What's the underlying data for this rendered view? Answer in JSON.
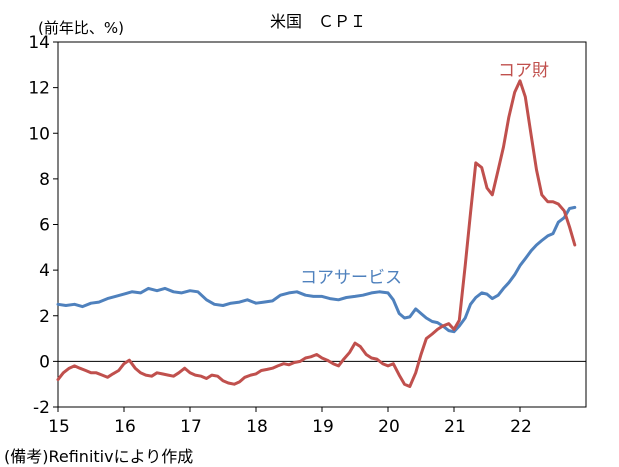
{
  "chart_data": {
    "type": "line",
    "title": "米国　ＣＰＩ",
    "unit_label": "(前年比、%)",
    "source": "(備考)Refinitivにより作成",
    "ylim": [
      -2,
      14
    ],
    "y_ticks": [
      -2,
      0,
      2,
      4,
      6,
      8,
      10,
      12,
      14
    ],
    "x_tick_labels": [
      "15",
      "16",
      "17",
      "18",
      "19",
      "20",
      "21",
      "22"
    ],
    "x_range": [
      2015.0,
      2023.0
    ],
    "grid": false,
    "zero_line": true,
    "series": [
      {
        "name": "コアサービス",
        "color": "#4f81bd",
        "points": [
          [
            2015.0,
            2.5
          ],
          [
            2015.12,
            2.45
          ],
          [
            2015.25,
            2.5
          ],
          [
            2015.37,
            2.4
          ],
          [
            2015.5,
            2.55
          ],
          [
            2015.62,
            2.6
          ],
          [
            2015.75,
            2.75
          ],
          [
            2015.87,
            2.85
          ],
          [
            2016.0,
            2.95
          ],
          [
            2016.12,
            3.05
          ],
          [
            2016.25,
            3.0
          ],
          [
            2016.37,
            3.2
          ],
          [
            2016.5,
            3.1
          ],
          [
            2016.62,
            3.2
          ],
          [
            2016.75,
            3.05
          ],
          [
            2016.87,
            3.0
          ],
          [
            2017.0,
            3.1
          ],
          [
            2017.12,
            3.05
          ],
          [
            2017.25,
            2.7
          ],
          [
            2017.37,
            2.5
          ],
          [
            2017.5,
            2.45
          ],
          [
            2017.62,
            2.55
          ],
          [
            2017.75,
            2.6
          ],
          [
            2017.87,
            2.7
          ],
          [
            2018.0,
            2.55
          ],
          [
            2018.12,
            2.6
          ],
          [
            2018.25,
            2.65
          ],
          [
            2018.37,
            2.9
          ],
          [
            2018.5,
            3.0
          ],
          [
            2018.62,
            3.05
          ],
          [
            2018.75,
            2.9
          ],
          [
            2018.87,
            2.85
          ],
          [
            2019.0,
            2.85
          ],
          [
            2019.12,
            2.75
          ],
          [
            2019.25,
            2.7
          ],
          [
            2019.37,
            2.8
          ],
          [
            2019.5,
            2.85
          ],
          [
            2019.62,
            2.9
          ],
          [
            2019.75,
            3.0
          ],
          [
            2019.87,
            3.05
          ],
          [
            2020.0,
            3.0
          ],
          [
            2020.08,
            2.7
          ],
          [
            2020.17,
            2.1
          ],
          [
            2020.25,
            1.9
          ],
          [
            2020.33,
            1.95
          ],
          [
            2020.42,
            2.3
          ],
          [
            2020.5,
            2.1
          ],
          [
            2020.58,
            1.9
          ],
          [
            2020.67,
            1.75
          ],
          [
            2020.75,
            1.7
          ],
          [
            2020.83,
            1.55
          ],
          [
            2020.92,
            1.35
          ],
          [
            2021.0,
            1.3
          ],
          [
            2021.08,
            1.55
          ],
          [
            2021.17,
            1.9
          ],
          [
            2021.25,
            2.5
          ],
          [
            2021.33,
            2.8
          ],
          [
            2021.42,
            3.0
          ],
          [
            2021.5,
            2.95
          ],
          [
            2021.58,
            2.75
          ],
          [
            2021.67,
            2.9
          ],
          [
            2021.75,
            3.2
          ],
          [
            2021.83,
            3.45
          ],
          [
            2021.92,
            3.8
          ],
          [
            2022.0,
            4.2
          ],
          [
            2022.08,
            4.5
          ],
          [
            2022.17,
            4.85
          ],
          [
            2022.25,
            5.1
          ],
          [
            2022.33,
            5.3
          ],
          [
            2022.42,
            5.5
          ],
          [
            2022.5,
            5.6
          ],
          [
            2022.58,
            6.1
          ],
          [
            2022.67,
            6.3
          ],
          [
            2022.75,
            6.7
          ],
          [
            2022.83,
            6.75
          ]
        ]
      },
      {
        "name": "コア財",
        "color": "#c0504d",
        "points": [
          [
            2015.0,
            -0.8
          ],
          [
            2015.08,
            -0.5
          ],
          [
            2015.17,
            -0.3
          ],
          [
            2015.25,
            -0.2
          ],
          [
            2015.33,
            -0.3
          ],
          [
            2015.42,
            -0.4
          ],
          [
            2015.5,
            -0.5
          ],
          [
            2015.58,
            -0.5
          ],
          [
            2015.67,
            -0.6
          ],
          [
            2015.75,
            -0.7
          ],
          [
            2015.83,
            -0.55
          ],
          [
            2015.92,
            -0.4
          ],
          [
            2016.0,
            -0.1
          ],
          [
            2016.08,
            0.05
          ],
          [
            2016.17,
            -0.3
          ],
          [
            2016.25,
            -0.5
          ],
          [
            2016.33,
            -0.6
          ],
          [
            2016.42,
            -0.65
          ],
          [
            2016.5,
            -0.5
          ],
          [
            2016.58,
            -0.55
          ],
          [
            2016.67,
            -0.6
          ],
          [
            2016.75,
            -0.65
          ],
          [
            2016.83,
            -0.5
          ],
          [
            2016.92,
            -0.3
          ],
          [
            2017.0,
            -0.5
          ],
          [
            2017.08,
            -0.6
          ],
          [
            2017.17,
            -0.65
          ],
          [
            2017.25,
            -0.75
          ],
          [
            2017.33,
            -0.6
          ],
          [
            2017.42,
            -0.65
          ],
          [
            2017.5,
            -0.85
          ],
          [
            2017.58,
            -0.95
          ],
          [
            2017.67,
            -1.0
          ],
          [
            2017.75,
            -0.9
          ],
          [
            2017.83,
            -0.7
          ],
          [
            2017.92,
            -0.6
          ],
          [
            2018.0,
            -0.55
          ],
          [
            2018.08,
            -0.4
          ],
          [
            2018.17,
            -0.35
          ],
          [
            2018.25,
            -0.3
          ],
          [
            2018.33,
            -0.2
          ],
          [
            2018.42,
            -0.1
          ],
          [
            2018.5,
            -0.15
          ],
          [
            2018.58,
            -0.05
          ],
          [
            2018.67,
            0.0
          ],
          [
            2018.75,
            0.15
          ],
          [
            2018.83,
            0.2
          ],
          [
            2018.92,
            0.3
          ],
          [
            2019.0,
            0.15
          ],
          [
            2019.08,
            0.05
          ],
          [
            2019.17,
            -0.1
          ],
          [
            2019.25,
            -0.2
          ],
          [
            2019.33,
            0.1
          ],
          [
            2019.42,
            0.4
          ],
          [
            2019.5,
            0.8
          ],
          [
            2019.58,
            0.65
          ],
          [
            2019.67,
            0.3
          ],
          [
            2019.75,
            0.15
          ],
          [
            2019.83,
            0.1
          ],
          [
            2019.92,
            -0.1
          ],
          [
            2020.0,
            -0.2
          ],
          [
            2020.08,
            -0.1
          ],
          [
            2020.17,
            -0.6
          ],
          [
            2020.25,
            -1.0
          ],
          [
            2020.33,
            -1.1
          ],
          [
            2020.42,
            -0.5
          ],
          [
            2020.5,
            0.3
          ],
          [
            2020.58,
            1.0
          ],
          [
            2020.67,
            1.2
          ],
          [
            2020.75,
            1.4
          ],
          [
            2020.83,
            1.55
          ],
          [
            2020.92,
            1.65
          ],
          [
            2021.0,
            1.4
          ],
          [
            2021.08,
            1.8
          ],
          [
            2021.17,
            4.2
          ],
          [
            2021.25,
            6.5
          ],
          [
            2021.33,
            8.7
          ],
          [
            2021.42,
            8.5
          ],
          [
            2021.5,
            7.6
          ],
          [
            2021.58,
            7.3
          ],
          [
            2021.67,
            8.4
          ],
          [
            2021.75,
            9.4
          ],
          [
            2021.83,
            10.7
          ],
          [
            2021.92,
            11.8
          ],
          [
            2022.0,
            12.3
          ],
          [
            2022.08,
            11.6
          ],
          [
            2022.17,
            9.9
          ],
          [
            2022.25,
            8.4
          ],
          [
            2022.33,
            7.3
          ],
          [
            2022.42,
            7.0
          ],
          [
            2022.5,
            7.0
          ],
          [
            2022.58,
            6.9
          ],
          [
            2022.67,
            6.6
          ],
          [
            2022.75,
            5.9
          ],
          [
            2022.83,
            5.1
          ]
        ]
      }
    ],
    "series_labels": [
      {
        "text": "コア財",
        "series": "コア財"
      },
      {
        "text": "コアサービス",
        "series": "コアサービス"
      }
    ]
  }
}
